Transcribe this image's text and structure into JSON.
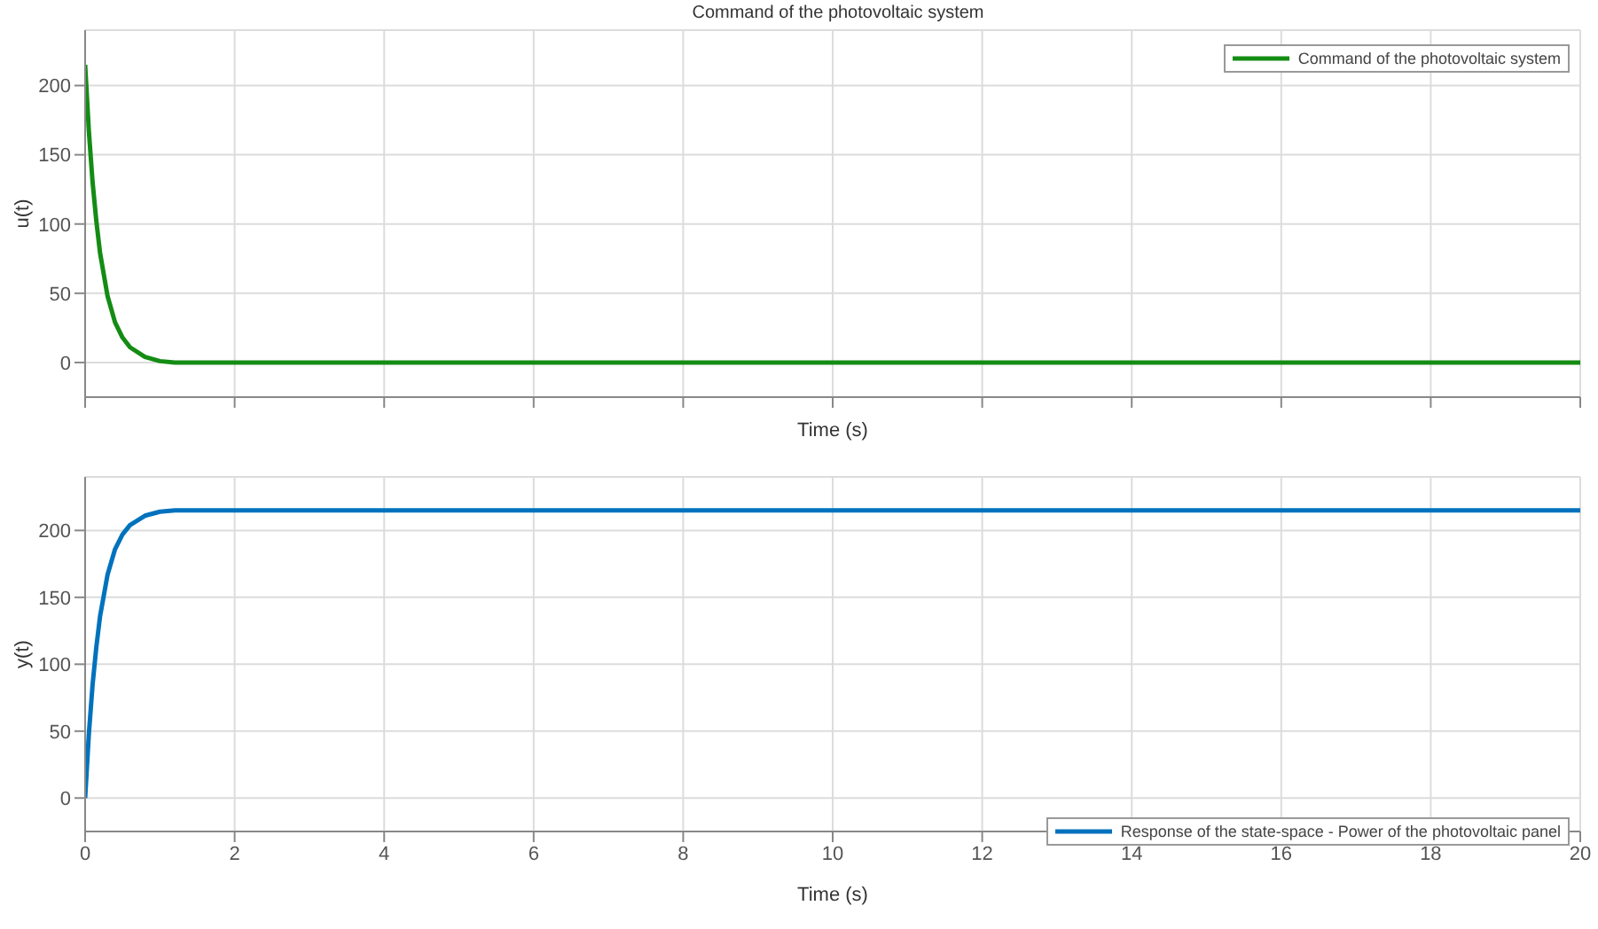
{
  "chart_data": [
    {
      "type": "line",
      "title": "Command of the photovoltaic system",
      "xlabel": "Time (s)",
      "ylabel": "u(t)",
      "x": [
        0,
        0.05,
        0.1,
        0.15,
        0.2,
        0.3,
        0.4,
        0.5,
        0.6,
        0.8,
        1.0,
        1.2,
        1.5,
        2,
        20
      ],
      "series": [
        {
          "name": "Command of the photovoltaic system",
          "color": "#148c14",
          "values": [
            215,
            167,
            130,
            102,
            79,
            48,
            29,
            18,
            11,
            4,
            1,
            0,
            0,
            0,
            0
          ]
        }
      ],
      "xlim": [
        0,
        20
      ],
      "xticks": [
        0,
        2,
        4,
        6,
        8,
        10,
        12,
        14,
        16,
        18,
        20
      ],
      "ylim": [
        -25,
        240
      ],
      "yticks": [
        0,
        50,
        100,
        150,
        200
      ],
      "tick_labels": "y",
      "grid": true,
      "legend": "top right",
      "marker": "none",
      "line_style": "solid"
    },
    {
      "type": "line",
      "xlabel": "Time (s)",
      "ylabel": "y(t)",
      "x": [
        0,
        0.05,
        0.1,
        0.15,
        0.2,
        0.3,
        0.4,
        0.5,
        0.6,
        0.8,
        1.0,
        1.2,
        1.5,
        2,
        20
      ],
      "series": [
        {
          "name": "Response of the state-space - Power of the photovoltaic panel",
          "color": "#0072bd",
          "values": [
            0,
            48,
            85,
            113,
            136,
            167,
            186,
            197,
            204,
            211,
            214,
            215,
            215,
            215,
            215
          ]
        }
      ],
      "xlim": [
        0,
        20
      ],
      "xticks": [
        0,
        2,
        4,
        6,
        8,
        10,
        12,
        14,
        16,
        18,
        20
      ],
      "ylim": [
        -25,
        240
      ],
      "yticks": [
        0,
        50,
        100,
        150,
        200
      ],
      "grid": true,
      "legend": "bottom right",
      "marker": "none",
      "line_style": "solid"
    }
  ]
}
